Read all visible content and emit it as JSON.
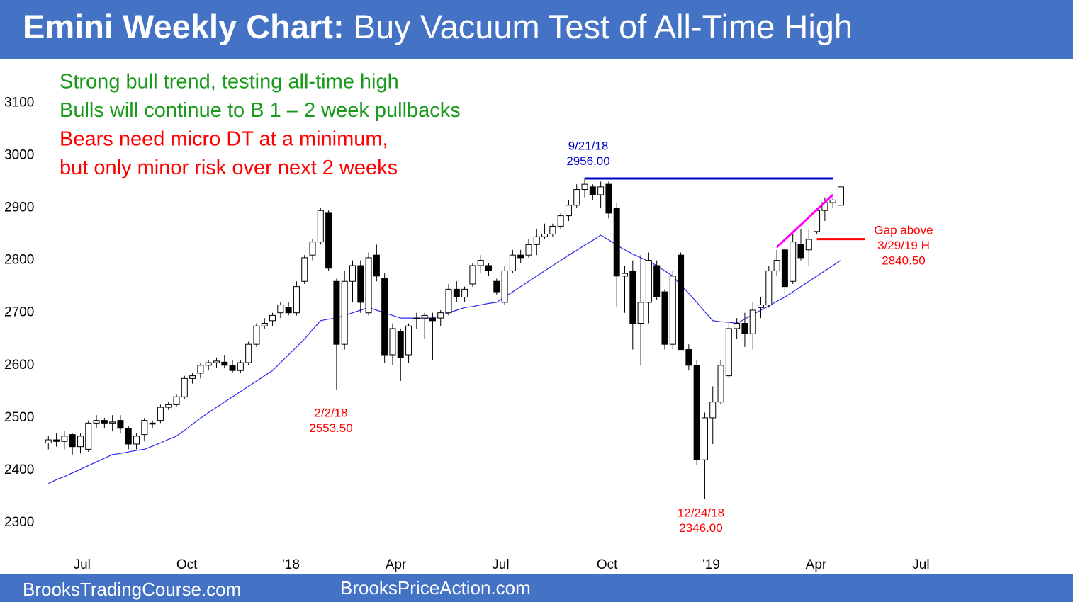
{
  "header": {
    "title_bold": "Emini Weekly Chart:",
    "title": "Buy Vacuum Test of All-Time High"
  },
  "footer": {
    "left": "BrooksTradingCourse.com",
    "right": "BrooksPriceAction.com"
  },
  "chart_data": {
    "type": "candlestick",
    "notes": [
      {
        "text": "Strong bull trend, testing all-time high",
        "color": "#1a9a1a"
      },
      {
        "text": "Bulls will continue to B 1 – 2 week pullbacks",
        "color": "#1a9a1a"
      },
      {
        "text": "Bears need micro DT at a minimum,",
        "color": "#ff0000"
      },
      {
        "text": "but only minor risk over next 2 weeks",
        "color": "#ff0000"
      }
    ],
    "open": [
      2452,
      2458,
      2455,
      2468,
      2445,
      2440,
      2490,
      2495,
      2490,
      2495,
      2480,
      2450,
      2468,
      2490,
      2495,
      2520,
      2525,
      2540,
      2575,
      2585,
      2600,
      2605,
      2606,
      2600,
      2590,
      2605,
      2640,
      2675,
      2685,
      2700,
      2710,
      2700,
      2760,
      2810,
      2835,
      2890,
      2760,
      2640,
      2760,
      2790,
      2700,
      2810,
      2765,
      2620,
      2665,
      2620,
      2690,
      2690,
      2690,
      2690,
      2700,
      2745,
      2730,
      2755,
      2790,
      2790,
      2760,
      2720,
      2780,
      2810,
      2810,
      2830,
      2845,
      2850,
      2865,
      2885,
      2905,
      2935,
      2940,
      2925,
      2945,
      2900,
      2770,
      2780,
      2680,
      2720,
      2790,
      2740,
      2640,
      2810,
      2630,
      2600,
      2420,
      2500,
      2530,
      2580,
      2670,
      2680,
      2660,
      2710,
      2715,
      2780,
      2820,
      2760,
      2830,
      2820,
      2855,
      2895,
      2910,
      2905
    ],
    "high": [
      2465,
      2470,
      2475,
      2470,
      2470,
      2495,
      2505,
      2500,
      2505,
      2505,
      2485,
      2470,
      2500,
      2495,
      2525,
      2530,
      2545,
      2580,
      2585,
      2605,
      2610,
      2615,
      2620,
      2610,
      2610,
      2645,
      2680,
      2690,
      2700,
      2720,
      2720,
      2760,
      2810,
      2840,
      2900,
      2895,
      2765,
      2780,
      2800,
      2800,
      2815,
      2830,
      2775,
      2680,
      2670,
      2680,
      2700,
      2700,
      2700,
      2705,
      2755,
      2760,
      2750,
      2795,
      2810,
      2795,
      2765,
      2790,
      2820,
      2820,
      2840,
      2860,
      2870,
      2870,
      2890,
      2915,
      2945,
      2956,
      2945,
      2950,
      2950,
      2910,
      2790,
      2800,
      2810,
      2815,
      2800,
      2745,
      2780,
      2815,
      2640,
      2610,
      2510,
      2560,
      2610,
      2680,
      2690,
      2700,
      2720,
      2730,
      2790,
      2820,
      2825,
      2850,
      2860,
      2860,
      2900,
      2920,
      2920,
      2945
    ],
    "low": [
      2440,
      2445,
      2440,
      2430,
      2432,
      2435,
      2480,
      2480,
      2475,
      2470,
      2440,
      2440,
      2455,
      2480,
      2490,
      2515,
      2520,
      2535,
      2565,
      2575,
      2590,
      2595,
      2595,
      2585,
      2585,
      2600,
      2635,
      2670,
      2675,
      2690,
      2695,
      2695,
      2755,
      2800,
      2830,
      2780,
      2553.5,
      2630,
      2720,
      2700,
      2695,
      2760,
      2605,
      2600,
      2570,
      2605,
      2670,
      2650,
      2610,
      2675,
      2695,
      2720,
      2720,
      2750,
      2775,
      2770,
      2735,
      2715,
      2775,
      2795,
      2805,
      2810,
      2840,
      2845,
      2860,
      2875,
      2900,
      2920,
      2915,
      2900,
      2880,
      2710,
      2700,
      2630,
      2600,
      2680,
      2725,
      2630,
      2630,
      2630,
      2590,
      2410,
      2346,
      2450,
      2525,
      2575,
      2650,
      2635,
      2630,
      2690,
      2710,
      2770,
      2735,
      2755,
      2800,
      2790,
      2850,
      2875,
      2900,
      2900
    ],
    "close": [
      2458,
      2455,
      2465,
      2445,
      2465,
      2490,
      2495,
      2490,
      2492,
      2480,
      2450,
      2465,
      2495,
      2488,
      2520,
      2525,
      2540,
      2575,
      2580,
      2600,
      2605,
      2608,
      2600,
      2590,
      2605,
      2640,
      2675,
      2680,
      2695,
      2715,
      2700,
      2750,
      2805,
      2835,
      2895,
      2785,
      2640,
      2760,
      2790,
      2720,
      2805,
      2770,
      2620,
      2670,
      2615,
      2675,
      2690,
      2695,
      2685,
      2700,
      2745,
      2730,
      2745,
      2790,
      2800,
      2780,
      2740,
      2780,
      2810,
      2805,
      2830,
      2845,
      2850,
      2865,
      2885,
      2905,
      2935,
      2945,
      2925,
      2940,
      2890,
      2770,
      2775,
      2680,
      2720,
      2800,
      2730,
      2640,
      2770,
      2630,
      2600,
      2420,
      2500,
      2530,
      2600,
      2670,
      2680,
      2660,
      2705,
      2715,
      2780,
      2800,
      2750,
      2835,
      2805,
      2840,
      2895,
      2910,
      2915,
      2940
    ],
    "ma": {
      "color": "#2a2aee",
      "values": [
        2375,
        2382,
        2388,
        2395,
        2402,
        2409,
        2416,
        2423,
        2430,
        2432,
        2435,
        2438,
        2440,
        2446,
        2452,
        2459,
        2465,
        2476,
        2488,
        2499,
        2510,
        2520,
        2530,
        2540,
        2550,
        2560,
        2570,
        2580,
        2590,
        2605,
        2620,
        2635,
        2650,
        2668,
        2685,
        2688,
        2690,
        2695,
        2700,
        2705,
        2710,
        2705,
        2700,
        2695,
        2690,
        2690,
        2690,
        2690,
        2690,
        2695,
        2700,
        2705,
        2710,
        2712,
        2715,
        2718,
        2720,
        2730,
        2740,
        2750,
        2760,
        2770,
        2780,
        2790,
        2800,
        2810,
        2819,
        2829,
        2838,
        2848,
        2839,
        2829,
        2820,
        2812,
        2805,
        2798,
        2790,
        2780,
        2770,
        2753,
        2737,
        2720,
        2702,
        2685,
        2683,
        2682,
        2680,
        2688,
        2697,
        2705,
        2713,
        2722,
        2730,
        2740,
        2750,
        2760,
        2770,
        2780,
        2790,
        2800
      ]
    },
    "trend": {
      "color": "#ff00ff",
      "x": [
        91,
        98
      ],
      "values": [
        2825,
        2925
      ]
    },
    "levels": [
      {
        "date": "9/21/18",
        "value": 2956,
        "value_label": "2956.00",
        "color": "#0000cc",
        "line_x": [
          67,
          98
        ]
      },
      {
        "date": "2/2/18",
        "value": 2553.5,
        "value_label": "2553.50",
        "color": "#ff0000"
      },
      {
        "date": "12/24/18",
        "value": 2346,
        "value_label": "2346.00",
        "color": "#ff0000"
      },
      {
        "text": "Gap above",
        "date": "3/29/19 H",
        "value": 2840.5,
        "value_label": "2840.50",
        "color": "#ff0000",
        "line_x": [
          96,
          102
        ]
      }
    ],
    "xlim": [
      -1,
      128
    ],
    "xticks": [
      {
        "value": 4.2,
        "label": "Jul"
      },
      {
        "value": 17.3,
        "label": "Oct"
      },
      {
        "value": 30.3,
        "label": "'18"
      },
      {
        "value": 43.4,
        "label": "Apr"
      },
      {
        "value": 56.5,
        "label": "Jul"
      },
      {
        "value": 69.8,
        "label": "Oct"
      },
      {
        "value": 82.8,
        "label": "'19"
      },
      {
        "value": 95.9,
        "label": "Apr"
      },
      {
        "value": 109,
        "label": "Jul"
      }
    ],
    "ylim": [
      2230,
      3180
    ],
    "yticks": [
      2300,
      2400,
      2500,
      2600,
      2700,
      2800,
      2900,
      3000,
      3100
    ]
  }
}
